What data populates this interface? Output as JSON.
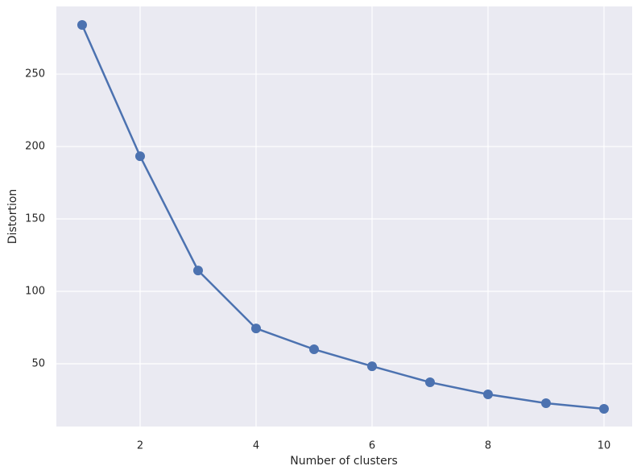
{
  "chart_data": {
    "type": "line",
    "x_label": "Number of clusters",
    "y_label": "Distortion",
    "x": [
      1,
      2,
      3,
      4,
      5,
      6,
      7,
      8,
      9,
      10
    ],
    "series": [
      {
        "color": "#4c72b0",
        "values": [
          283.9,
          193.3,
          114.4,
          74.4,
          60,
          48.3,
          37.2,
          28.9,
          22.8,
          18.9
        ]
      }
    ],
    "xlim": [
      0.556,
      10.486
    ],
    "ylim": [
      6.67,
      296.7
    ],
    "xticks": [
      2,
      4,
      6,
      8,
      10
    ],
    "yticks": [
      50,
      100,
      150,
      200,
      250
    ],
    "grid": true,
    "markers": true
  }
}
